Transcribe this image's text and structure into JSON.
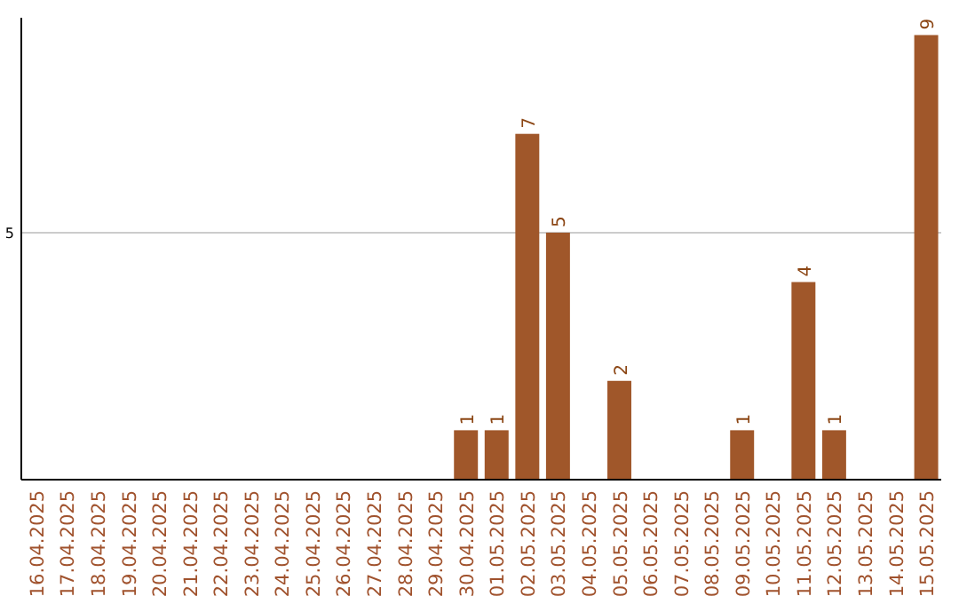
{
  "chart_data": {
    "type": "bar",
    "categories": [
      "16.04.2025",
      "17.04.2025",
      "18.04.2025",
      "19.04.2025",
      "20.04.2025",
      "21.04.2025",
      "22.04.2025",
      "23.04.2025",
      "24.04.2025",
      "25.04.2025",
      "26.04.2025",
      "27.04.2025",
      "28.04.2025",
      "29.04.2025",
      "30.04.2025",
      "01.05.2025",
      "02.05.2025",
      "03.05.2025",
      "04.05.2025",
      "05.05.2025",
      "06.05.2025",
      "07.05.2025",
      "08.05.2025",
      "09.05.2025",
      "10.05.2025",
      "11.05.2025",
      "12.05.2025",
      "13.05.2025",
      "14.05.2025",
      "15.05.2025"
    ],
    "values": [
      null,
      null,
      null,
      null,
      null,
      null,
      null,
      null,
      null,
      null,
      null,
      null,
      null,
      null,
      1,
      1,
      7,
      5,
      null,
      2,
      null,
      null,
      null,
      1,
      null,
      4,
      1,
      null,
      null,
      9
    ],
    "data_labels": true,
    "color": "#a0572a",
    "ylim": [
      0,
      9.35
    ],
    "yticks": [
      5
    ],
    "grid": "y"
  }
}
